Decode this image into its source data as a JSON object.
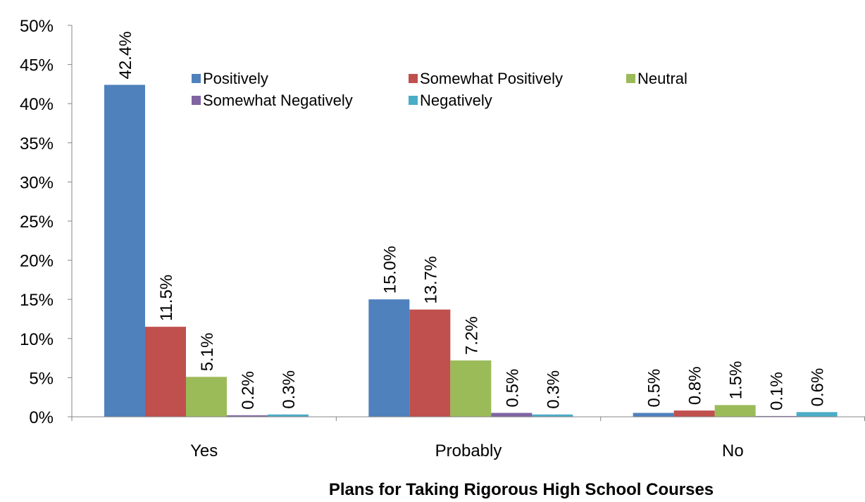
{
  "chart_data": {
    "type": "bar",
    "title": "",
    "xlabel": "Plans for Taking Rigorous High School Courses",
    "ylabel": "",
    "ylim": [
      0,
      50
    ],
    "y_ticks": [
      0,
      5,
      10,
      15,
      20,
      25,
      30,
      35,
      40,
      45,
      50
    ],
    "y_tick_suffix": "%",
    "categories": [
      "Yes",
      "Probably",
      "No"
    ],
    "legend_position": "top-right",
    "grid": false,
    "series": [
      {
        "name": "Positively",
        "color": "#4F81BD",
        "values": [
          42.4,
          15.0,
          0.5
        ],
        "labels": [
          "42.4%",
          "15.0%",
          "0.5%"
        ]
      },
      {
        "name": "Somewhat Positively",
        "color": "#C0504D",
        "values": [
          11.5,
          13.7,
          0.8
        ],
        "labels": [
          "11.5%",
          "13.7%",
          "0.8%"
        ]
      },
      {
        "name": "Neutral",
        "color": "#9BBB59",
        "values": [
          5.1,
          7.2,
          1.5
        ],
        "labels": [
          "5.1%",
          "7.2%",
          "1.5%"
        ]
      },
      {
        "name": "Somewhat Negatively",
        "color": "#8064A2",
        "values": [
          0.2,
          0.5,
          0.1
        ],
        "labels": [
          "0.2%",
          "0.5%",
          "0.1%"
        ]
      },
      {
        "name": "Negatively",
        "color": "#4BACC6",
        "values": [
          0.3,
          0.3,
          0.6
        ],
        "labels": [
          "0.3%",
          "0.3%",
          "0.6%"
        ]
      }
    ]
  }
}
